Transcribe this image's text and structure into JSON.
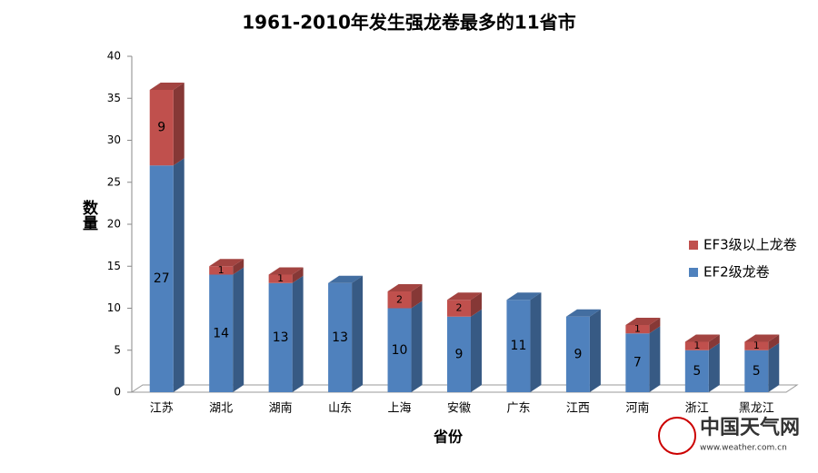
{
  "chart_data": {
    "type": "bar3d-stacked",
    "title": "1961-2010年发生强龙卷最多的11省市",
    "y_label": "数量",
    "x_label": "省份",
    "categories": [
      "江苏",
      "湖北",
      "湖南",
      "山东",
      "上海",
      "安徽",
      "广东",
      "江西",
      "河南",
      "浙江",
      "黑龙江"
    ],
    "series": [
      {
        "name": "EF2级龙卷",
        "color": "#4f81bd",
        "values": [
          27,
          14,
          13,
          13,
          10,
          9,
          11,
          9,
          7,
          5,
          5
        ]
      },
      {
        "name": "EF3级以上龙卷",
        "color": "#c0504d",
        "values": [
          9,
          1,
          1,
          null,
          2,
          2,
          null,
          null,
          1,
          1,
          1
        ]
      }
    ],
    "ylim": [
      0,
      40
    ],
    "yticks": [
      0,
      5,
      10,
      15,
      20,
      25,
      30,
      35,
      40
    ],
    "legend": "right",
    "watermark": {
      "name": "中国天气网",
      "url": "www.weather.com.cn"
    }
  }
}
